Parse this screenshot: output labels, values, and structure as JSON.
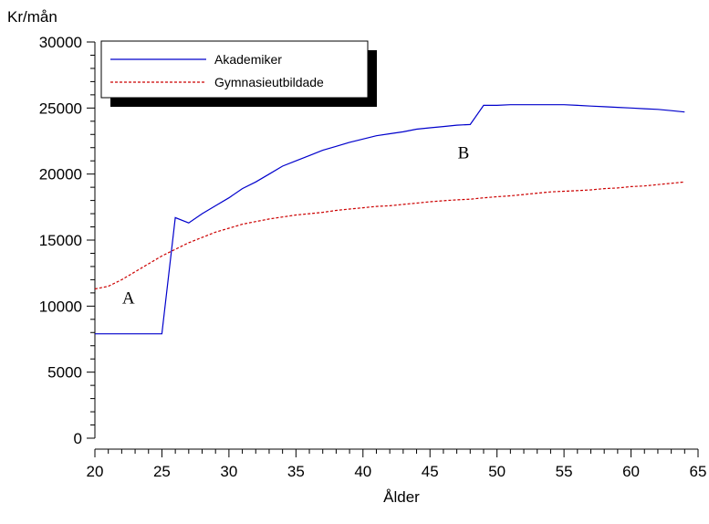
{
  "chart_data": {
    "type": "line",
    "title": "",
    "xlabel": "Ålder",
    "ylabel": "Kr/mån",
    "xlim": [
      20,
      65
    ],
    "ylim": [
      0,
      30000
    ],
    "xticks": [
      20,
      25,
      30,
      35,
      40,
      45,
      50,
      55,
      60,
      65
    ],
    "yticks": [
      0,
      5000,
      10000,
      15000,
      20000,
      25000,
      30000
    ],
    "grid": false,
    "legend": "top-left",
    "annotations": [
      {
        "text": "A",
        "x": 22.5,
        "y": 10200
      },
      {
        "text": "B",
        "x": 47.5,
        "y": 21200
      }
    ],
    "series": [
      {
        "name": "Akademiker",
        "color": "#0000cc",
        "style": "solid",
        "x": [
          20,
          21,
          22,
          23,
          24,
          25,
          26,
          27,
          28,
          29,
          30,
          31,
          32,
          33,
          34,
          35,
          36,
          37,
          38,
          39,
          40,
          41,
          42,
          43,
          44,
          45,
          46,
          47,
          48,
          49,
          50,
          51,
          52,
          53,
          54,
          55,
          56,
          57,
          58,
          59,
          60,
          61,
          62,
          63,
          64
        ],
        "y": [
          7900,
          7900,
          7900,
          7900,
          7900,
          7900,
          16700,
          16300,
          17000,
          17600,
          18200,
          18900,
          19400,
          20000,
          20600,
          21000,
          21400,
          21800,
          22100,
          22400,
          22650,
          22900,
          23050,
          23200,
          23400,
          23500,
          23600,
          23700,
          23750,
          25200,
          25200,
          25250,
          25250,
          25250,
          25250,
          25250,
          25200,
          25150,
          25100,
          25050,
          25000,
          24950,
          24900,
          24800,
          24700
        ]
      },
      {
        "name": "Gymnasieutbildade",
        "color": "#cc0000",
        "style": "dashed",
        "x": [
          20,
          21,
          22,
          23,
          24,
          25,
          26,
          27,
          28,
          29,
          30,
          31,
          32,
          33,
          34,
          35,
          36,
          37,
          38,
          39,
          40,
          41,
          42,
          43,
          44,
          45,
          46,
          47,
          48,
          49,
          50,
          51,
          52,
          53,
          54,
          55,
          56,
          57,
          58,
          59,
          60,
          61,
          62,
          63,
          64
        ],
        "y": [
          11300,
          11500,
          12000,
          12600,
          13200,
          13800,
          14300,
          14800,
          15200,
          15600,
          15900,
          16200,
          16400,
          16600,
          16750,
          16900,
          17000,
          17100,
          17250,
          17350,
          17450,
          17550,
          17600,
          17700,
          17800,
          17900,
          17980,
          18050,
          18100,
          18200,
          18280,
          18350,
          18450,
          18550,
          18650,
          18700,
          18750,
          18800,
          18900,
          18950,
          19050,
          19100,
          19200,
          19300,
          19400
        ]
      }
    ]
  }
}
